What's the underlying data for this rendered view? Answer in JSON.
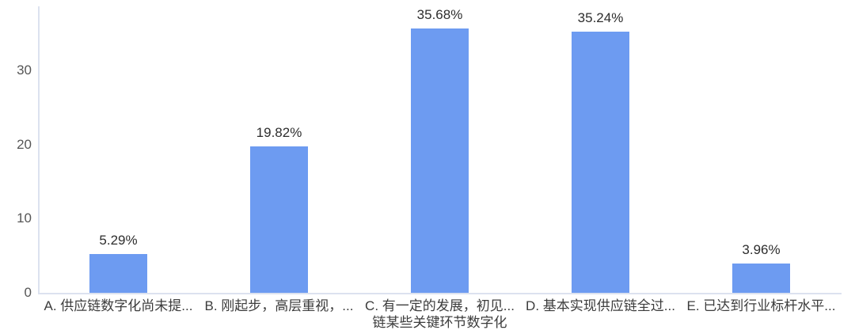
{
  "chart_data": {
    "type": "bar",
    "categories": [
      "A. 供应链数字化尚未提...",
      "B. 刚起步，高层重视，...",
      "C. 有一定的发展，初见...",
      "D. 基本实现供应链全过...",
      "E. 已达到行业标杆水平..."
    ],
    "categories_line2": [
      "",
      "",
      "链某些关键环节数字化",
      "",
      ""
    ],
    "values": [
      5.29,
      19.82,
      35.68,
      35.24,
      3.96
    ],
    "data_labels": [
      "5.29%",
      "19.82%",
      "35.68%",
      "35.24%",
      "3.96%"
    ],
    "title": "",
    "xlabel": "",
    "ylabel": "",
    "ylim": [
      0,
      38.7
    ],
    "yticks": [
      "0",
      "10",
      "20",
      "30"
    ],
    "ytick_values": [
      0,
      10,
      20,
      30
    ],
    "grid": false,
    "legend": "none",
    "colors": {
      "bar": "#6d9bf1",
      "axis_line": "#dce2ef",
      "value_label": "#2d2d2d",
      "tick_label": "#565656",
      "category_label": "#3c3c3c"
    }
  }
}
